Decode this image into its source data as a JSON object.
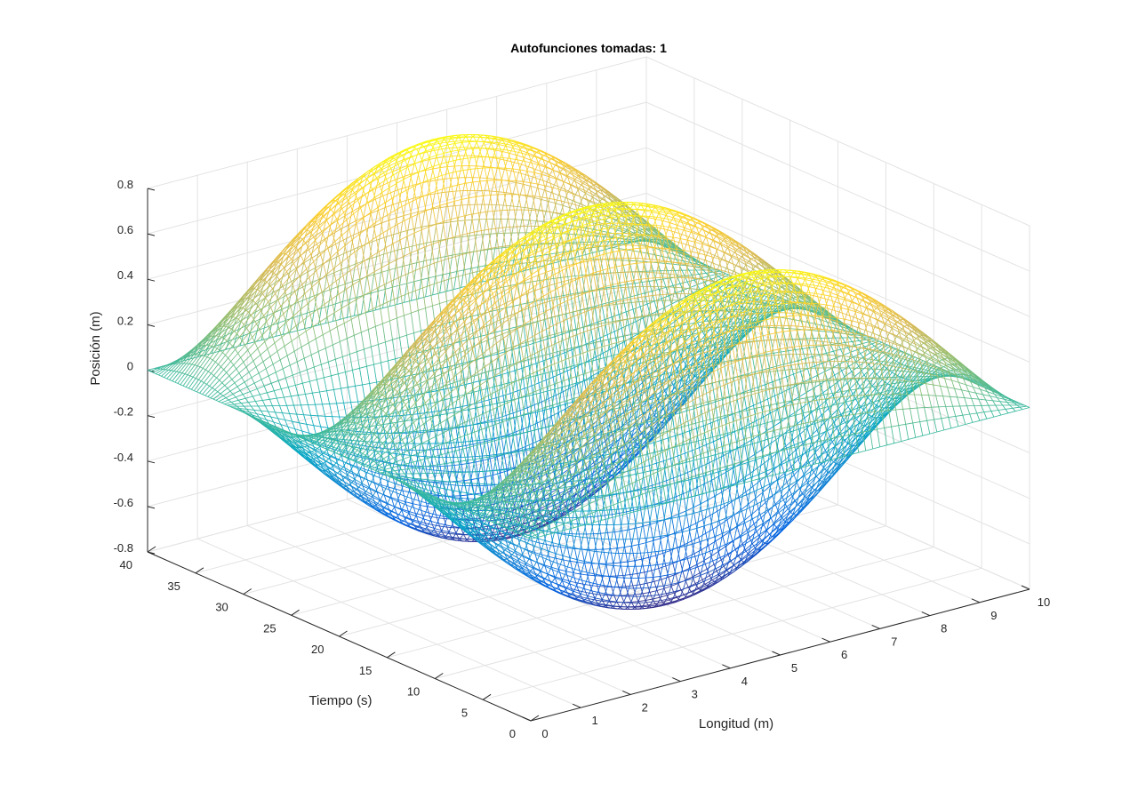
{
  "chart_data": {
    "type": "surface",
    "title": "Autofunciones tomadas: 1",
    "xlabel": "Longitud (m)",
    "ylabel": "Tiempo (s)",
    "zlabel": "Posición (m)",
    "xlim": [
      0,
      10
    ],
    "ylim": [
      0,
      40
    ],
    "zlim": [
      -0.8,
      0.8
    ],
    "x_ticks": [
      "0",
      "1",
      "2",
      "3",
      "4",
      "5",
      "6",
      "7",
      "8",
      "9",
      "10"
    ],
    "y_ticks": [
      "0",
      "5",
      "10",
      "15",
      "20",
      "25",
      "30",
      "35",
      "40"
    ],
    "z_ticks": [
      "-0.8",
      "-0.6",
      "-0.4",
      "-0.2",
      "0",
      "0.2",
      "0.4",
      "0.6",
      "0.8"
    ],
    "surface": {
      "function": "z = 0.8 * sin(pi * x / 10) * sin(2 * pi * t / 16)",
      "amplitude": 0.8,
      "spatial_mode": 1,
      "period_s": 16,
      "x_samples": 70,
      "t_samples": 140
    },
    "colormap": "parula",
    "colormap_stops": [
      "#352a87",
      "#0363e1",
      "#1485d4",
      "#06a7c6",
      "#38b99e",
      "#92bf73",
      "#d9ba56",
      "#fcce2e",
      "#f9fb0e"
    ],
    "grid": true,
    "view": "3d"
  }
}
